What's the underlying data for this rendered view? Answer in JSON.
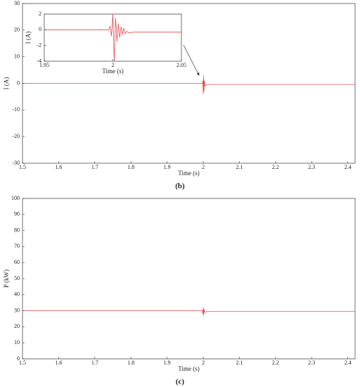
{
  "chart_data": [
    {
      "type": "line",
      "xlabel": "Time (s)",
      "ylabel": "I (A)",
      "caption": "(b)",
      "xlim": [
        1.5,
        2.42
      ],
      "ylim": [
        -30,
        30
      ],
      "xticks": [
        1.5,
        1.6,
        1.7,
        1.8,
        1.9,
        2,
        2.1,
        2.2,
        2.3,
        2.4
      ],
      "yticks": [
        -30,
        -20,
        -10,
        0,
        10,
        20,
        30
      ],
      "series": [
        {
          "color": "#e8474b",
          "x": [
            1.5,
            1.998,
            1.999,
            2.0,
            2.001,
            2.002,
            2.003,
            2.005,
            2.01,
            2.42
          ],
          "values": [
            0,
            0,
            1,
            -4,
            3,
            -3,
            1,
            -1,
            -0.4,
            -0.4
          ]
        }
      ]
    },
    {
      "type": "line",
      "xlabel": "Time (s)",
      "ylabel": "I (A)",
      "xlim": [
        1.95,
        2.05
      ],
      "ylim": [
        -4,
        2
      ],
      "xticks": [
        1.95,
        2,
        2.05
      ],
      "yticks": [
        -4,
        -2,
        0,
        2
      ],
      "series": [
        {
          "color": "#e8474b",
          "x": [
            1.95,
            1.997,
            1.998,
            1.999,
            2.0,
            2.001,
            2.002,
            2.003,
            2.004,
            2.005,
            2.006,
            2.007,
            2.008,
            2.009,
            2.01,
            2.012,
            2.015,
            2.05
          ],
          "values": [
            0,
            0,
            0.5,
            -0.8,
            2,
            -4,
            1.5,
            -1.5,
            0.8,
            -1,
            0.4,
            -0.6,
            0.2,
            -0.5,
            -0.2,
            -0.4,
            -0.3,
            -0.3
          ]
        }
      ]
    },
    {
      "type": "line",
      "xlabel": "Time (s)",
      "ylabel": "P (kW)",
      "caption": "(c)",
      "xlim": [
        1.5,
        2.42
      ],
      "ylim": [
        0,
        100
      ],
      "xticks": [
        1.5,
        1.6,
        1.7,
        1.8,
        1.9,
        2,
        2.1,
        2.2,
        2.3,
        2.4
      ],
      "yticks": [
        0,
        10,
        20,
        30,
        40,
        50,
        60,
        70,
        80,
        90,
        100
      ],
      "series": [
        {
          "color": "#e8474b",
          "x": [
            1.5,
            1.998,
            1.999,
            2.0,
            2.001,
            2.002,
            2.004,
            2.01,
            2.42
          ],
          "values": [
            30,
            30,
            28,
            32,
            27,
            31,
            29,
            29.5,
            29.5
          ]
        }
      ]
    }
  ]
}
